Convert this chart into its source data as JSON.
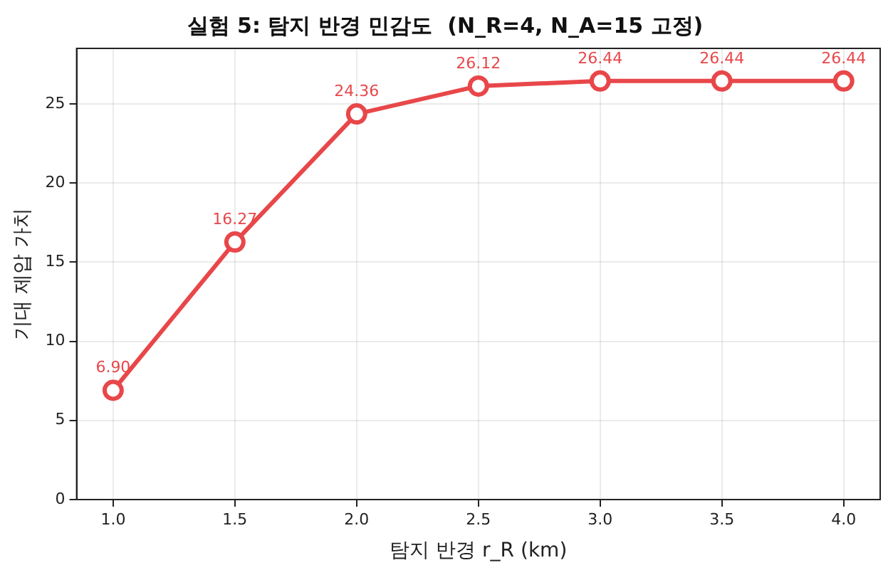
{
  "chart_data": {
    "type": "line",
    "title": "실험 5: 탐지 반경 민감도  (N_R=4, N_A=15 고정)",
    "xlabel": "탐지 반경 r_R (km)",
    "ylabel": "기대 제압 가치",
    "x": [
      1.0,
      1.5,
      2.0,
      2.5,
      3.0,
      3.5,
      4.0
    ],
    "series": [
      {
        "color": "#e8474a",
        "values": [
          6.9,
          16.27,
          24.36,
          26.12,
          26.44,
          26.44,
          26.44
        ],
        "value_labels": [
          "6.90",
          "16.27",
          "24.36",
          "26.12",
          "26.44",
          "26.44",
          "26.44"
        ]
      }
    ],
    "xlim": [
      0.85,
      4.15
    ],
    "xticks": [
      {
        "value": 1,
        "label": "1.0"
      },
      {
        "value": 1.5,
        "label": "1.5"
      },
      {
        "value": 2,
        "label": "2.0"
      },
      {
        "value": 2.5,
        "label": "2.5"
      },
      {
        "value": 3,
        "label": "3.0"
      },
      {
        "value": 3.5,
        "label": "3.5"
      },
      {
        "value": 4,
        "label": "4.0"
      }
    ],
    "ylim": [
      0,
      28.5
    ],
    "yticks": [
      0,
      5,
      10,
      15,
      20,
      25
    ],
    "grid": true,
    "marker": "circle",
    "line_style": "solid",
    "legend": false
  }
}
